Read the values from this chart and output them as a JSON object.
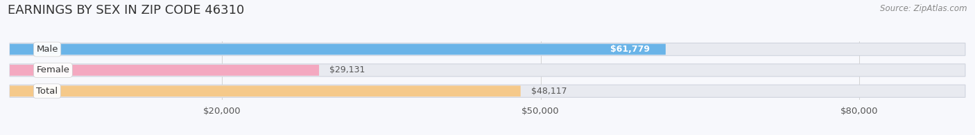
{
  "title": "EARNINGS BY SEX IN ZIP CODE 46310",
  "source": "Source: ZipAtlas.com",
  "categories": [
    "Male",
    "Female",
    "Total"
  ],
  "values": [
    61779,
    29131,
    48117
  ],
  "bar_colors": [
    "#6ab4e8",
    "#f4a8c0",
    "#f5c98a"
  ],
  "track_color": "#e8eaf0",
  "value_labels": [
    "$61,779",
    "$29,131",
    "$48,117"
  ],
  "value_label_colors": [
    "#ffffff",
    "#555555",
    "#555555"
  ],
  "value_label_inside": [
    true,
    false,
    false
  ],
  "xmin": 0,
  "xmax": 90000,
  "xticks": [
    20000,
    50000,
    80000
  ],
  "xtick_labels": [
    "$20,000",
    "$50,000",
    "$80,000"
  ],
  "background_color": "#f7f8fc",
  "title_fontsize": 13,
  "label_fontsize": 9.5,
  "value_fontsize": 9,
  "source_fontsize": 8.5
}
